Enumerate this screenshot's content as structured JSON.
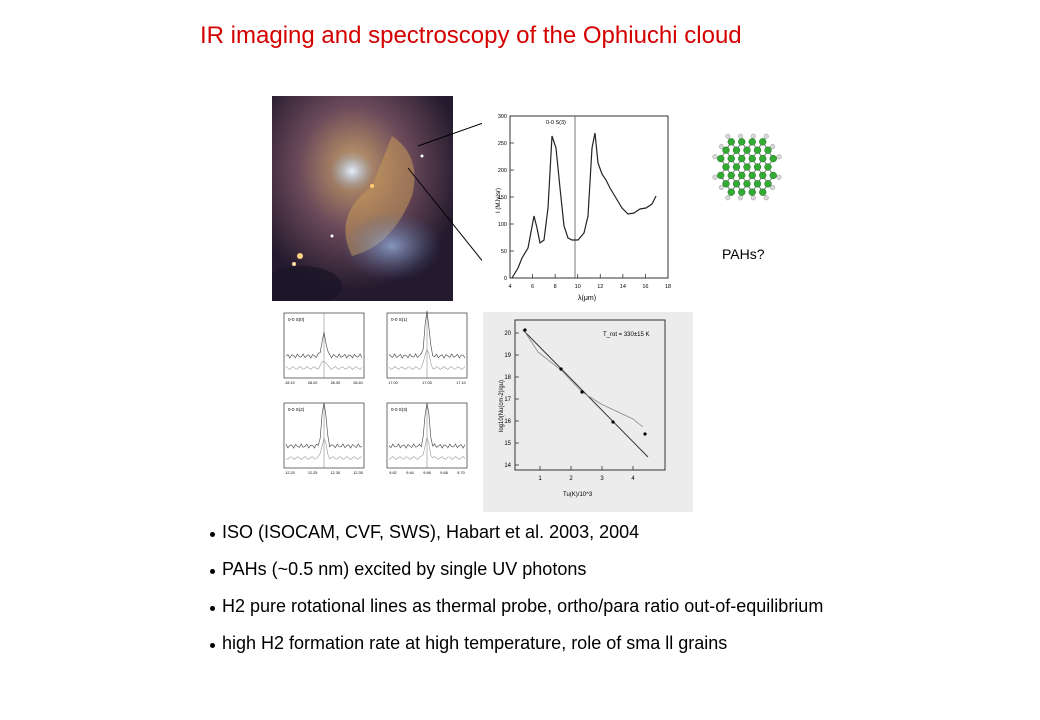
{
  "slide": {
    "title": "IR imaging and spectroscopy of the Ophiuchi cloud",
    "pah_label": "PAHs?"
  },
  "spectrum": {
    "line_label": "0-0 S(3)",
    "ylabel": "I (MJy/sr)",
    "xlabel": "λ(μm)",
    "xticks": [
      "4",
      "6",
      "8",
      "10",
      "12",
      "14",
      "16",
      "18"
    ],
    "yticks": [
      "0",
      "50",
      "100",
      "150",
      "200",
      "250",
      "300"
    ]
  },
  "line_panels": [
    {
      "label": "0-0 S(0)",
      "xticks": [
        "28.10",
        "28.20",
        "28.30",
        "28.40"
      ]
    },
    {
      "label": "0-0 S(1)",
      "xticks": [
        "17.00",
        "17.05",
        "17.10"
      ]
    },
    {
      "label": "0-0 S(2)",
      "xticks": [
        "12.20",
        "12.25",
        "12.30",
        "12.35"
      ]
    },
    {
      "label": "0-0 S(3)",
      "xticks": [
        "9.62",
        "9.64",
        "9.66",
        "9.68",
        "9.70"
      ]
    }
  ],
  "boltzmann": {
    "annotation": "T_rot = 330±15 K",
    "ylabel": "log10(Nu(cm-2)/gu)",
    "xlabel": "Tu(K)/10^3",
    "xticks": [
      "1",
      "2",
      "3",
      "4"
    ],
    "yticks": [
      "14",
      "15",
      "16",
      "17",
      "18",
      "19",
      "20"
    ]
  },
  "bullets": [
    "ISO (ISOCAM, CVF, SWS), Habart et al. 2003, 2004",
    "PAHs (~0.5 nm) excited by single UV photons",
    "H2 pure rotational lines as thermal probe, ortho/para ratio out-of-equilibrium",
    "high H2 formation rate at high temperature, role of sma ll grains"
  ]
}
